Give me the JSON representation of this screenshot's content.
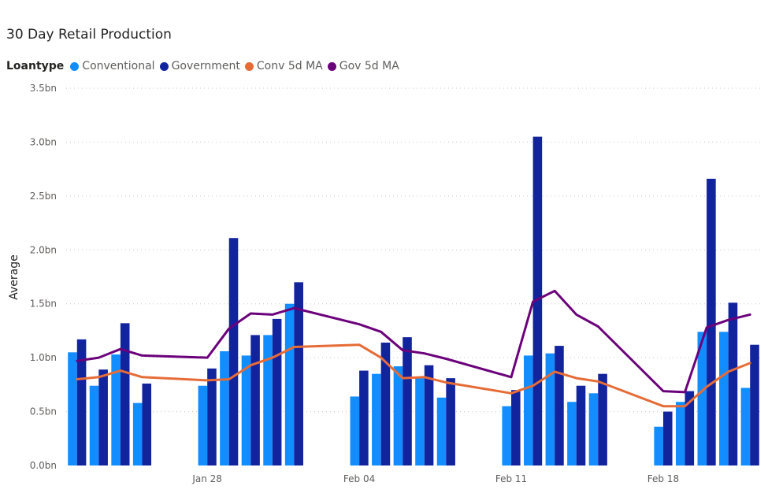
{
  "chart_data": {
    "type": "bar",
    "title": "30 Day Retail Production",
    "legend_title": "Loantype",
    "legend_position": "top-left",
    "ylabel": "Average",
    "xlabel": "",
    "ylim": [
      0,
      3.5
    ],
    "y_ticks": [
      "0.0bn",
      "0.5bn",
      "1.0bn",
      "1.5bn",
      "2.0bn",
      "2.5bn",
      "3.0bn",
      "3.5bn"
    ],
    "y_tick_values": [
      0,
      0.5,
      1.0,
      1.5,
      2.0,
      2.5,
      3.0,
      3.5
    ],
    "x_ticks": [
      {
        "label": "Jan 28",
        "date": "2019-01-28"
      },
      {
        "label": "Feb 04",
        "date": "2019-02-04"
      },
      {
        "label": "Feb 11",
        "date": "2019-02-11"
      },
      {
        "label": "Feb 18",
        "date": "2019-02-18"
      }
    ],
    "x_range": [
      "2019-01-22",
      "2019-02-22"
    ],
    "grid": true,
    "dates": [
      "2019-01-22",
      "2019-01-23",
      "2019-01-24",
      "2019-01-25",
      "2019-01-28",
      "2019-01-29",
      "2019-01-30",
      "2019-01-31",
      "2019-02-01",
      "2019-02-04",
      "2019-02-05",
      "2019-02-06",
      "2019-02-07",
      "2019-02-08",
      "2019-02-11",
      "2019-02-12",
      "2019-02-13",
      "2019-02-14",
      "2019-02-15",
      "2019-02-18",
      "2019-02-19",
      "2019-02-20",
      "2019-02-21",
      "2019-02-22"
    ],
    "series": [
      {
        "name": "Conventional",
        "kind": "bar",
        "color": "#118DFF",
        "values": [
          1.05,
          0.74,
          1.03,
          0.58,
          0.74,
          1.06,
          1.02,
          1.21,
          1.5,
          0.64,
          0.85,
          0.92,
          0.81,
          0.63,
          0.55,
          1.02,
          1.04,
          0.59,
          0.67,
          0.36,
          0.59,
          1.24,
          1.24,
          0.72
        ]
      },
      {
        "name": "Government",
        "kind": "bar",
        "color": "#12239E",
        "values": [
          1.17,
          0.89,
          1.32,
          0.76,
          0.9,
          2.11,
          1.21,
          1.36,
          1.7,
          0.88,
          1.14,
          1.19,
          0.93,
          0.81,
          0.7,
          3.05,
          1.11,
          0.74,
          0.85,
          0.5,
          0.69,
          2.66,
          1.51,
          1.12
        ]
      },
      {
        "name": "Conv 5d MA",
        "kind": "line",
        "color": "#E66C37",
        "values": [
          0.8,
          0.82,
          0.88,
          0.82,
          0.79,
          0.8,
          0.93,
          1.0,
          1.1,
          1.12,
          1.0,
          0.81,
          0.82,
          0.77,
          0.67,
          0.74,
          0.87,
          0.81,
          0.78,
          0.55,
          0.55,
          0.73,
          0.87,
          0.95
        ]
      },
      {
        "name": "Gov 5d MA",
        "kind": "line",
        "color": "#6B007B",
        "values": [
          0.97,
          1.0,
          1.08,
          1.02,
          1.0,
          1.27,
          1.41,
          1.4,
          1.46,
          1.31,
          1.24,
          1.07,
          1.04,
          0.99,
          0.82,
          1.52,
          1.62,
          1.4,
          1.29,
          0.69,
          0.68,
          1.28,
          1.35,
          1.4
        ]
      }
    ]
  }
}
